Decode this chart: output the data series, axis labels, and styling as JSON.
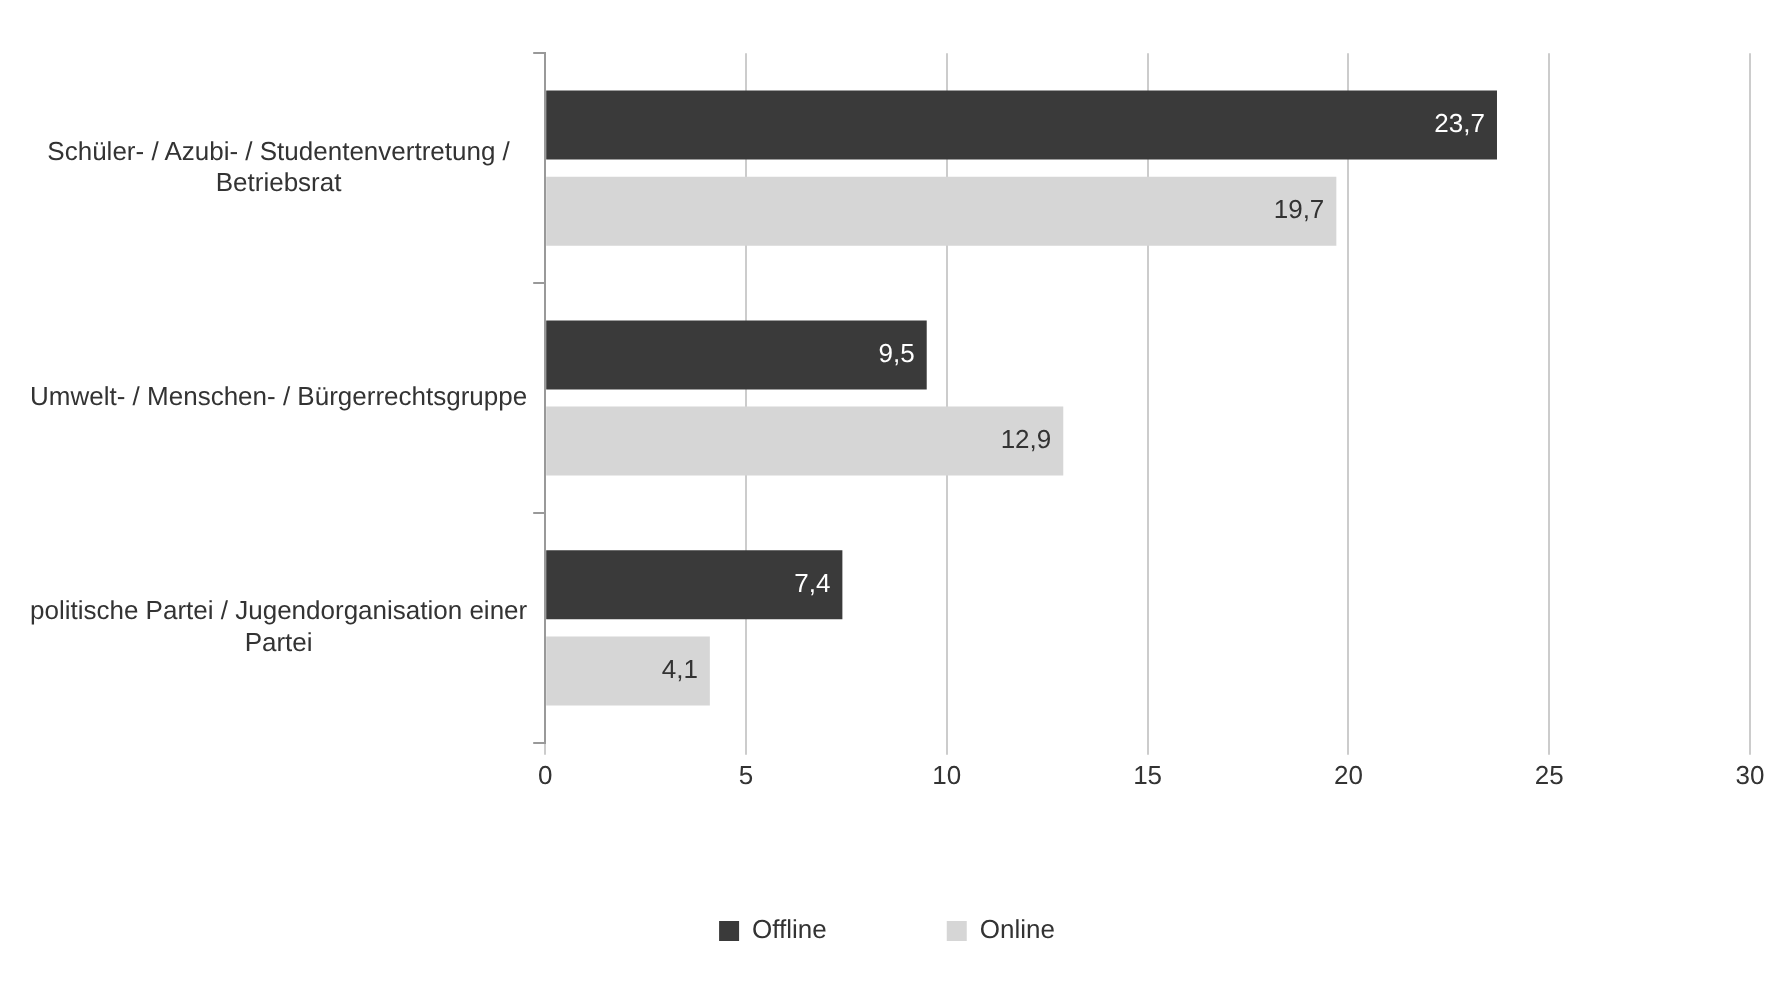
{
  "chart_data": {
    "type": "bar",
    "orientation": "horizontal",
    "categories": [
      "Schüler- / Azubi- / Studentenvertretung / Betriebsrat",
      "Umwelt- / Menschen- / Bürgerrechtsgruppe",
      "politische Partei / Jugendorganisation einer Partei"
    ],
    "series": [
      {
        "name": "Offline",
        "color": "#3a3a3a",
        "values": [
          23.7,
          9.5,
          7.4
        ],
        "value_labels": [
          "23,7",
          "9,5",
          "7,4"
        ]
      },
      {
        "name": "Online",
        "color": "#d6d6d6",
        "values": [
          19.7,
          12.9,
          4.1
        ],
        "value_labels": [
          "19,7",
          "12,9",
          "4,1"
        ]
      }
    ],
    "xlim": [
      0,
      30
    ],
    "xticks": [
      0,
      5,
      10,
      15,
      20,
      25,
      30
    ],
    "grid": "x",
    "legend": "bottom"
  }
}
